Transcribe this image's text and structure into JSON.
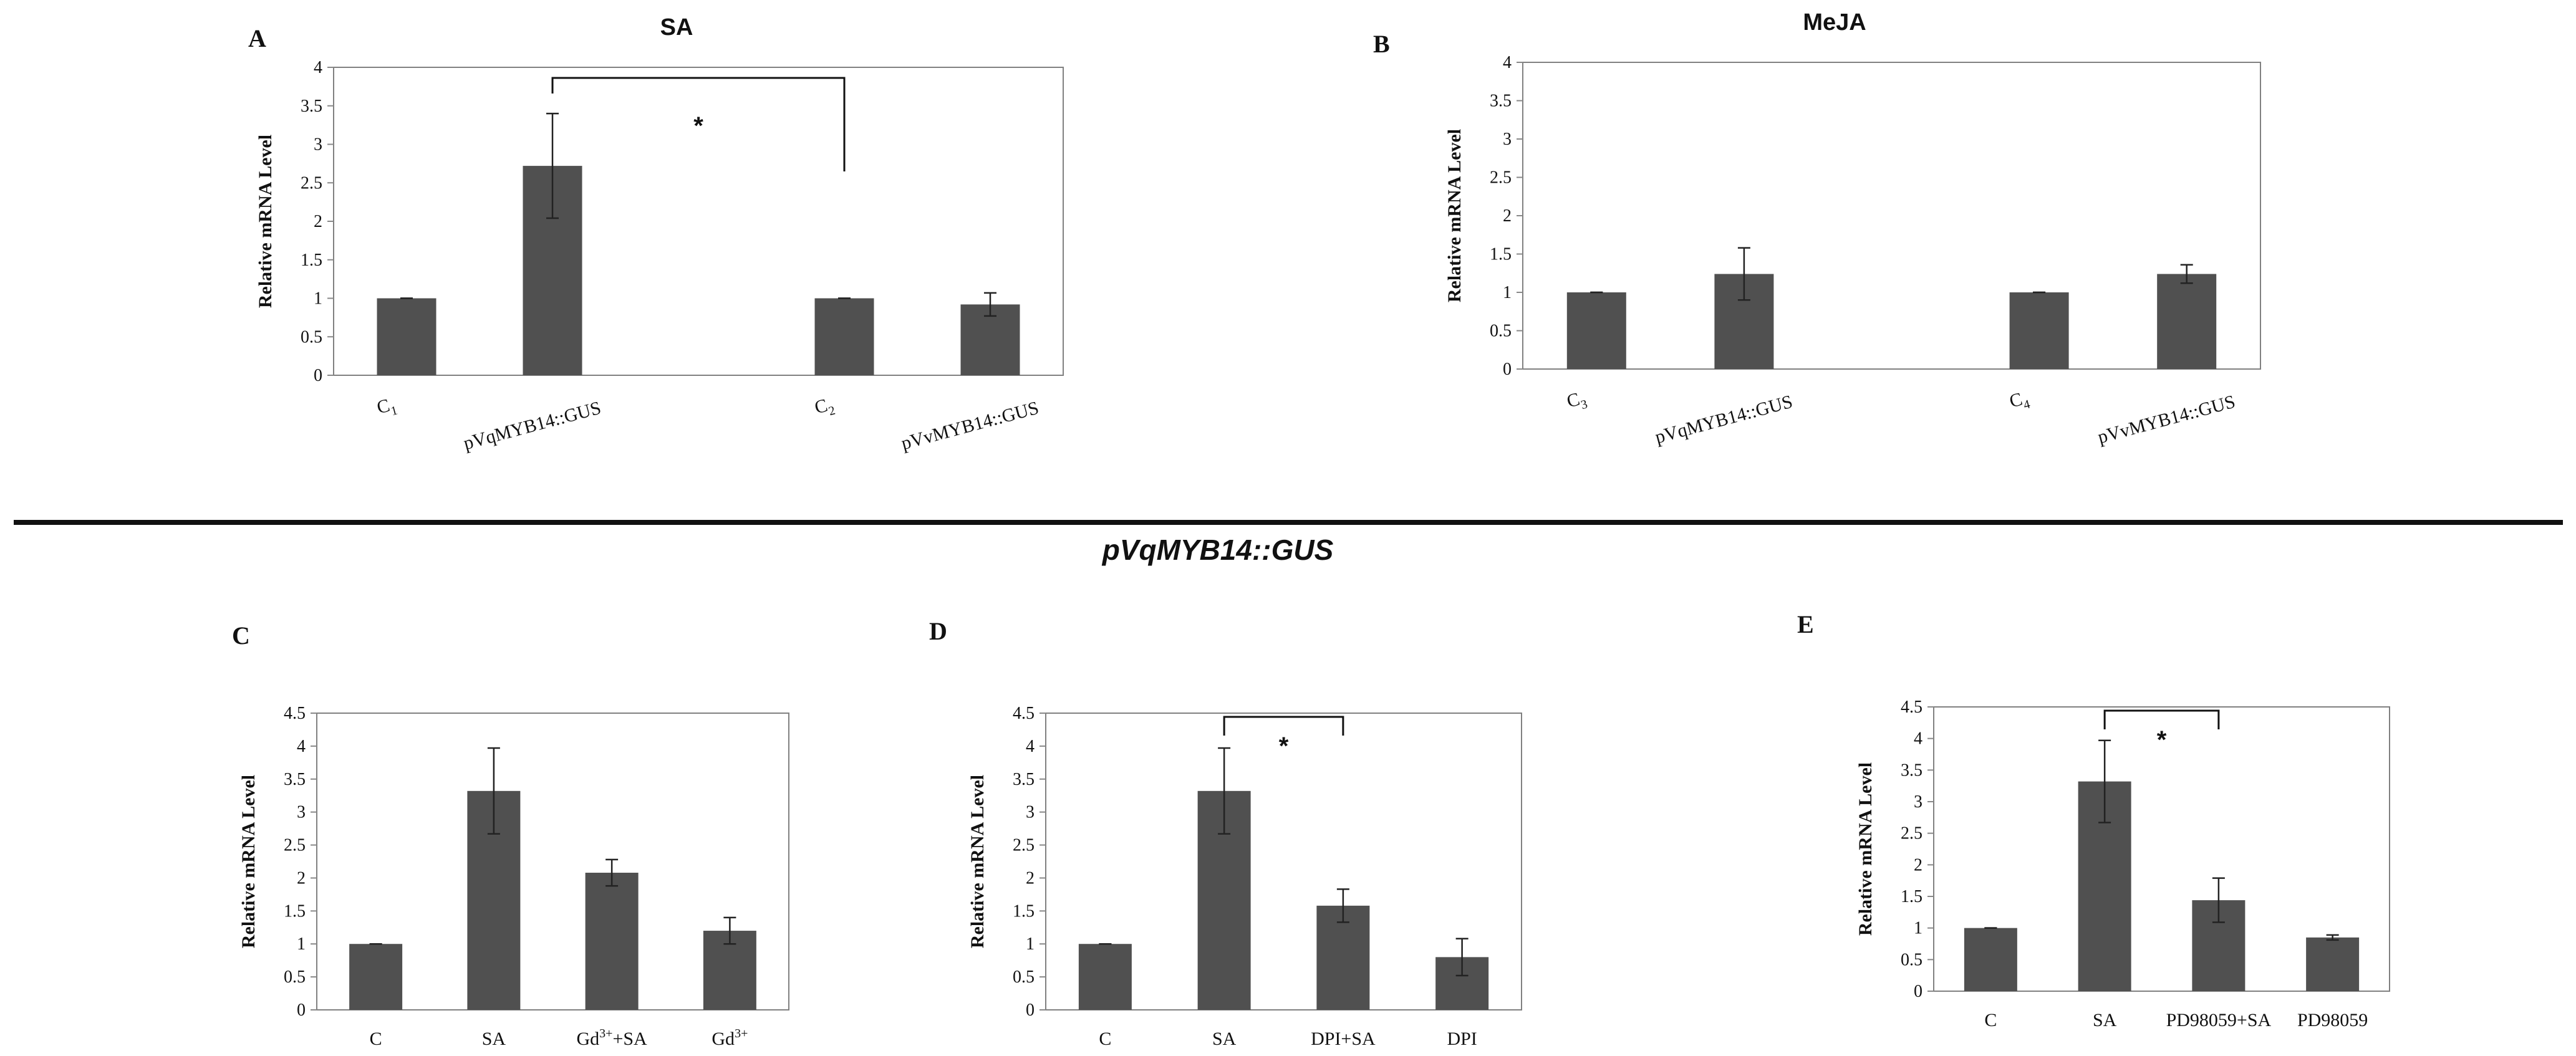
{
  "divider_title": "pVqMYB14::GUS",
  "colors": {
    "bar": "#505050",
    "axis": "#888888",
    "frame": "#808080",
    "text": "#111111"
  },
  "chart_data": [
    {
      "id": "A",
      "letter": "A",
      "title": "SA",
      "type": "bar",
      "ylabel": "Relative mRNA Level",
      "ylim": [
        0,
        4
      ],
      "yticks": [
        0,
        0.5,
        1,
        1.5,
        2,
        2.5,
        3,
        3.5,
        4
      ],
      "categories": [
        "C1",
        "pVqMYB14::GUS",
        "",
        "C2",
        "pVvMYB14::GUS"
      ],
      "category_labels": [
        {
          "text": "C",
          "sub": "1"
        },
        {
          "text": "pVqMYB14::GUS",
          "sub": ""
        },
        {
          "text": "",
          "sub": ""
        },
        {
          "text": "C",
          "sub": "2"
        },
        {
          "text": "pVvMYB14::GUS",
          "sub": ""
        }
      ],
      "values": [
        1.0,
        2.72,
        null,
        1.0,
        0.92
      ],
      "errors": [
        0.0,
        0.68,
        null,
        0.0,
        0.15
      ],
      "significance": [
        {
          "from": 1,
          "to": 3,
          "label": "*"
        }
      ]
    },
    {
      "id": "B",
      "letter": "B",
      "title": "MeJA",
      "type": "bar",
      "ylabel": "Relative mRNA Level",
      "ylim": [
        0,
        4
      ],
      "yticks": [
        0,
        0.5,
        1,
        1.5,
        2,
        2.5,
        3,
        3.5,
        4
      ],
      "categories": [
        "C3",
        "pVqMYB14::GUS",
        "",
        "C4",
        "pVvMYB14::GUS"
      ],
      "category_labels": [
        {
          "text": "C",
          "sub": "3"
        },
        {
          "text": "pVqMYB14::GUS",
          "sub": ""
        },
        {
          "text": "",
          "sub": ""
        },
        {
          "text": "C",
          "sub": "4"
        },
        {
          "text": "pVvMYB14::GUS",
          "sub": ""
        }
      ],
      "values": [
        1.0,
        1.24,
        null,
        1.0,
        1.24
      ],
      "errors": [
        0.0,
        0.34,
        null,
        0.0,
        0.12
      ],
      "significance": []
    },
    {
      "id": "C",
      "letter": "C",
      "title": "",
      "type": "bar",
      "ylabel": "Relative mRNA Level",
      "ylim": [
        0,
        4.5
      ],
      "yticks": [
        0,
        0.5,
        1,
        1.5,
        2,
        2.5,
        3,
        3.5,
        4,
        4.5
      ],
      "categories": [
        "C",
        "SA",
        "Gd3++SA",
        "Gd3+"
      ],
      "category_labels": [
        {
          "text": "C",
          "sup": ""
        },
        {
          "text": "SA",
          "sup": ""
        },
        {
          "text": "Gd",
          "sup": "3+",
          "after": "+SA"
        },
        {
          "text": "Gd",
          "sup": "3+"
        }
      ],
      "values": [
        1.0,
        3.32,
        2.08,
        1.2
      ],
      "errors": [
        0.0,
        0.65,
        0.2,
        0.2
      ],
      "significance": []
    },
    {
      "id": "D",
      "letter": "D",
      "title": "",
      "type": "bar",
      "ylabel": "Relative mRNA Level",
      "ylim": [
        0,
        4.5
      ],
      "yticks": [
        0,
        0.5,
        1,
        1.5,
        2,
        2.5,
        3,
        3.5,
        4,
        4.5
      ],
      "categories": [
        "C",
        "SA",
        "DPI+SA",
        "DPI"
      ],
      "category_labels": [
        {
          "text": "C"
        },
        {
          "text": "SA"
        },
        {
          "text": "DPI+SA"
        },
        {
          "text": "DPI"
        }
      ],
      "values": [
        1.0,
        3.32,
        1.58,
        0.8
      ],
      "errors": [
        0.0,
        0.65,
        0.25,
        0.28
      ],
      "significance": [
        {
          "from": 1,
          "to": 2,
          "label": "*"
        }
      ]
    },
    {
      "id": "E",
      "letter": "E",
      "title": "",
      "type": "bar",
      "ylabel": "Relative mRNA Level",
      "ylim": [
        0,
        4.5
      ],
      "yticks": [
        0,
        0.5,
        1,
        1.5,
        2,
        2.5,
        3,
        3.5,
        4,
        4.5
      ],
      "categories": [
        "C",
        "SA",
        "PD98059+SA",
        "PD98059"
      ],
      "category_labels": [
        {
          "text": "C"
        },
        {
          "text": "SA"
        },
        {
          "text": "PD98059+SA"
        },
        {
          "text": "PD98059"
        }
      ],
      "values": [
        1.0,
        3.32,
        1.44,
        0.85
      ],
      "errors": [
        0.0,
        0.65,
        0.35,
        0.04
      ],
      "significance": [
        {
          "from": 1,
          "to": 2,
          "label": "*"
        }
      ]
    }
  ]
}
